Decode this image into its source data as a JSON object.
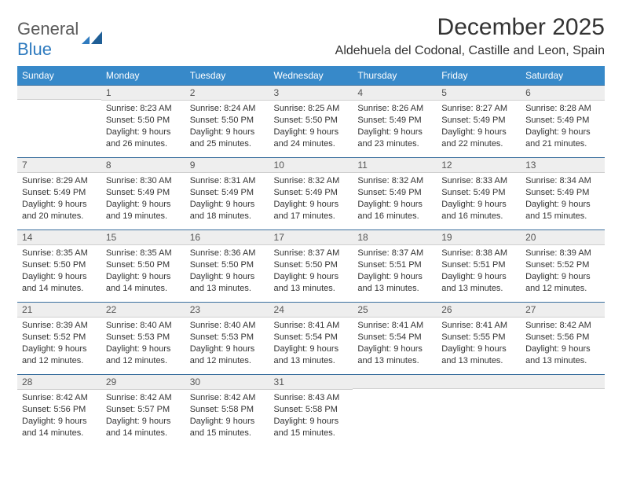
{
  "brand": {
    "word1": "General",
    "word2": "Blue"
  },
  "title": "December 2025",
  "location": "Aldehuela del Codonal, Castille and Leon, Spain",
  "colors": {
    "header_bg": "#3789c9",
    "daybar_bg": "#eeeeee",
    "rule": "#3a6f9e"
  },
  "dayNames": [
    "Sunday",
    "Monday",
    "Tuesday",
    "Wednesday",
    "Thursday",
    "Friday",
    "Saturday"
  ],
  "weeks": [
    [
      null,
      {
        "n": "1",
        "sunrise": "8:23 AM",
        "sunset": "5:50 PM",
        "daylight": "9 hours and 26 minutes."
      },
      {
        "n": "2",
        "sunrise": "8:24 AM",
        "sunset": "5:50 PM",
        "daylight": "9 hours and 25 minutes."
      },
      {
        "n": "3",
        "sunrise": "8:25 AM",
        "sunset": "5:50 PM",
        "daylight": "9 hours and 24 minutes."
      },
      {
        "n": "4",
        "sunrise": "8:26 AM",
        "sunset": "5:49 PM",
        "daylight": "9 hours and 23 minutes."
      },
      {
        "n": "5",
        "sunrise": "8:27 AM",
        "sunset": "5:49 PM",
        "daylight": "9 hours and 22 minutes."
      },
      {
        "n": "6",
        "sunrise": "8:28 AM",
        "sunset": "5:49 PM",
        "daylight": "9 hours and 21 minutes."
      }
    ],
    [
      {
        "n": "7",
        "sunrise": "8:29 AM",
        "sunset": "5:49 PM",
        "daylight": "9 hours and 20 minutes."
      },
      {
        "n": "8",
        "sunrise": "8:30 AM",
        "sunset": "5:49 PM",
        "daylight": "9 hours and 19 minutes."
      },
      {
        "n": "9",
        "sunrise": "8:31 AM",
        "sunset": "5:49 PM",
        "daylight": "9 hours and 18 minutes."
      },
      {
        "n": "10",
        "sunrise": "8:32 AM",
        "sunset": "5:49 PM",
        "daylight": "9 hours and 17 minutes."
      },
      {
        "n": "11",
        "sunrise": "8:32 AM",
        "sunset": "5:49 PM",
        "daylight": "9 hours and 16 minutes."
      },
      {
        "n": "12",
        "sunrise": "8:33 AM",
        "sunset": "5:49 PM",
        "daylight": "9 hours and 16 minutes."
      },
      {
        "n": "13",
        "sunrise": "8:34 AM",
        "sunset": "5:49 PM",
        "daylight": "9 hours and 15 minutes."
      }
    ],
    [
      {
        "n": "14",
        "sunrise": "8:35 AM",
        "sunset": "5:50 PM",
        "daylight": "9 hours and 14 minutes."
      },
      {
        "n": "15",
        "sunrise": "8:35 AM",
        "sunset": "5:50 PM",
        "daylight": "9 hours and 14 minutes."
      },
      {
        "n": "16",
        "sunrise": "8:36 AM",
        "sunset": "5:50 PM",
        "daylight": "9 hours and 13 minutes."
      },
      {
        "n": "17",
        "sunrise": "8:37 AM",
        "sunset": "5:50 PM",
        "daylight": "9 hours and 13 minutes."
      },
      {
        "n": "18",
        "sunrise": "8:37 AM",
        "sunset": "5:51 PM",
        "daylight": "9 hours and 13 minutes."
      },
      {
        "n": "19",
        "sunrise": "8:38 AM",
        "sunset": "5:51 PM",
        "daylight": "9 hours and 13 minutes."
      },
      {
        "n": "20",
        "sunrise": "8:39 AM",
        "sunset": "5:52 PM",
        "daylight": "9 hours and 12 minutes."
      }
    ],
    [
      {
        "n": "21",
        "sunrise": "8:39 AM",
        "sunset": "5:52 PM",
        "daylight": "9 hours and 12 minutes."
      },
      {
        "n": "22",
        "sunrise": "8:40 AM",
        "sunset": "5:53 PM",
        "daylight": "9 hours and 12 minutes."
      },
      {
        "n": "23",
        "sunrise": "8:40 AM",
        "sunset": "5:53 PM",
        "daylight": "9 hours and 12 minutes."
      },
      {
        "n": "24",
        "sunrise": "8:41 AM",
        "sunset": "5:54 PM",
        "daylight": "9 hours and 13 minutes."
      },
      {
        "n": "25",
        "sunrise": "8:41 AM",
        "sunset": "5:54 PM",
        "daylight": "9 hours and 13 minutes."
      },
      {
        "n": "26",
        "sunrise": "8:41 AM",
        "sunset": "5:55 PM",
        "daylight": "9 hours and 13 minutes."
      },
      {
        "n": "27",
        "sunrise": "8:42 AM",
        "sunset": "5:56 PM",
        "daylight": "9 hours and 13 minutes."
      }
    ],
    [
      {
        "n": "28",
        "sunrise": "8:42 AM",
        "sunset": "5:56 PM",
        "daylight": "9 hours and 14 minutes."
      },
      {
        "n": "29",
        "sunrise": "8:42 AM",
        "sunset": "5:57 PM",
        "daylight": "9 hours and 14 minutes."
      },
      {
        "n": "30",
        "sunrise": "8:42 AM",
        "sunset": "5:58 PM",
        "daylight": "9 hours and 15 minutes."
      },
      {
        "n": "31",
        "sunrise": "8:43 AM",
        "sunset": "5:58 PM",
        "daylight": "9 hours and 15 minutes."
      },
      null,
      null,
      null
    ]
  ]
}
